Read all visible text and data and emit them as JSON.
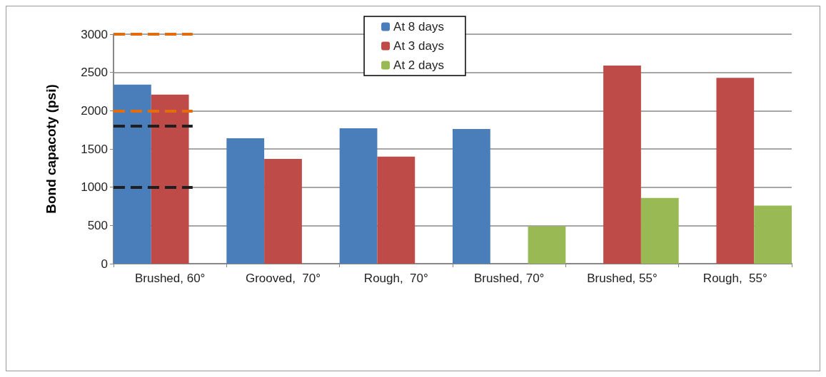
{
  "chart_data": {
    "type": "bar",
    "ylabel": "Bond capacoty (psi)",
    "categories": [
      "Brushed, 60°",
      "Grooved,  70°",
      "Rough,  70°",
      "Brushed, 70°",
      "Brushed, 55°",
      "Rough,  55°"
    ],
    "series": [
      {
        "name": "At 8 days",
        "color": "#4a7ebb",
        "values": [
          2340,
          1640,
          1770,
          1760,
          null,
          null
        ]
      },
      {
        "name": "At 3 days",
        "color": "#be4b48",
        "values": [
          2210,
          1370,
          1400,
          null,
          2590,
          2430
        ]
      },
      {
        "name": "At 2 days",
        "color": "#98b954",
        "values": [
          null,
          null,
          null,
          490,
          860,
          760
        ]
      }
    ],
    "ylim": [
      0,
      3000
    ],
    "yticks": [
      0,
      500,
      1000,
      1500,
      2000,
      2500,
      3000
    ],
    "grid": "y",
    "legend": "top",
    "ref_lines": [
      {
        "axis": "y",
        "value": 3000,
        "color": "#e46c0a",
        "line_style": "dashed"
      },
      {
        "axis": "y",
        "value": 2000,
        "color": "#e46c0a",
        "line_style": "dashed"
      },
      {
        "axis": "y",
        "value": 1800,
        "color": "#1f1f1f",
        "line_style": "dashed"
      },
      {
        "axis": "y",
        "value": 1000,
        "color": "#1f1f1f",
        "line_style": "dashed"
      }
    ]
  }
}
